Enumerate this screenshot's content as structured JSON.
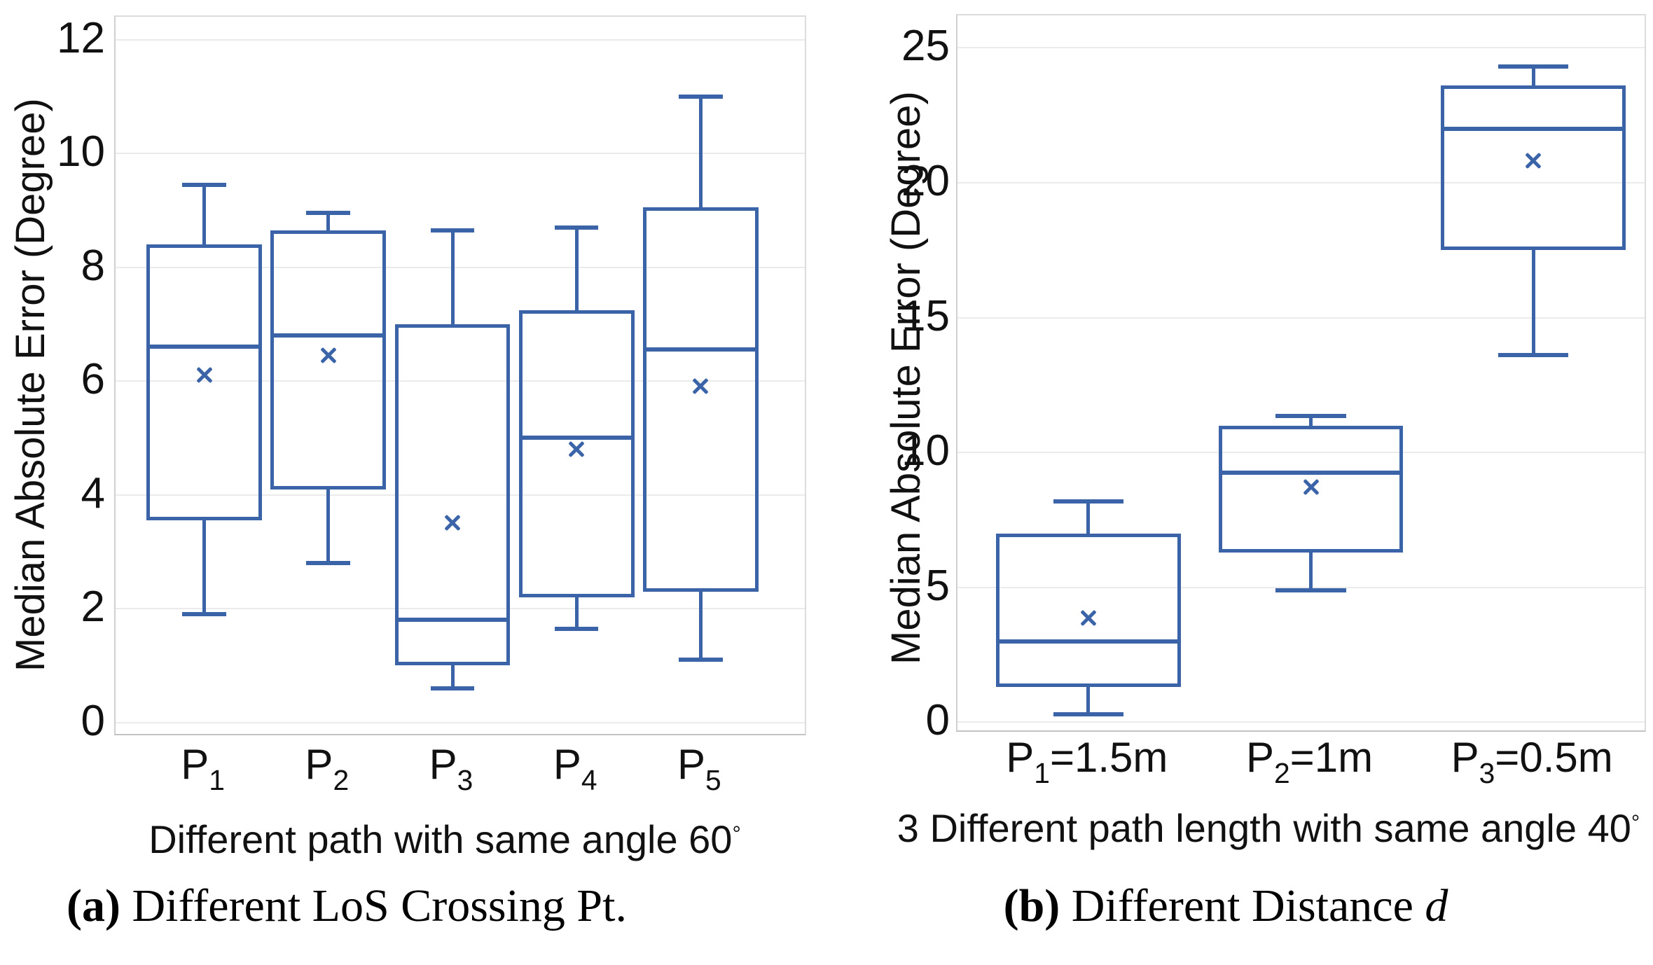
{
  "figure": {
    "captions": [
      {
        "bold": "(a)",
        "text": " Different LoS Crossing Pt.",
        "italic": ""
      },
      {
        "bold": "(b)",
        "text": " Different Distance ",
        "italic": "d"
      }
    ],
    "accent_color": "#3a63a8",
    "gridline_color": "#ebebeb"
  },
  "chart_data": [
    {
      "type": "box",
      "title": "",
      "ylabel": "Median Absolute Error (Degree)",
      "xlabel": "Different path with same angle 60",
      "xlabel_degree": "°",
      "ylim": [
        -0.2,
        12.4
      ],
      "yticks": [
        0,
        2,
        4,
        6,
        8,
        10,
        12
      ],
      "grid": true,
      "legend": "none",
      "categories": [
        {
          "base": "P",
          "sub": "1",
          "suffix": ""
        },
        {
          "base": "P",
          "sub": "2",
          "suffix": ""
        },
        {
          "base": "P",
          "sub": "3",
          "suffix": ""
        },
        {
          "base": "P",
          "sub": "4",
          "suffix": ""
        },
        {
          "base": "P",
          "sub": "5",
          "suffix": ""
        }
      ],
      "series": [
        {
          "category": "P1",
          "low": 1.9,
          "q1": 3.55,
          "median": 6.6,
          "mean": 6.1,
          "q3": 8.4,
          "high": 9.45
        },
        {
          "category": "P2",
          "low": 2.8,
          "q1": 4.1,
          "median": 6.8,
          "mean": 6.45,
          "q3": 8.65,
          "high": 8.95
        },
        {
          "category": "P3",
          "low": 0.6,
          "q1": 1.0,
          "median": 1.8,
          "mean": 3.5,
          "q3": 7.0,
          "high": 8.65
        },
        {
          "category": "P4",
          "low": 1.65,
          "q1": 2.2,
          "median": 5.0,
          "mean": 4.8,
          "q3": 7.25,
          "high": 8.7
        },
        {
          "category": "P5",
          "low": 1.1,
          "q1": 2.3,
          "median": 6.55,
          "mean": 5.9,
          "q3": 9.05,
          "high": 11.0
        }
      ]
    },
    {
      "type": "box",
      "title": "",
      "ylabel": "Median Absolute Error (Degree)",
      "xlabel": "3 Different path length with same angle 40",
      "xlabel_degree": "°",
      "ylim": [
        -0.3,
        26.2
      ],
      "yticks": [
        0,
        5,
        10,
        15,
        20,
        25
      ],
      "grid": true,
      "legend": "none",
      "categories": [
        {
          "base": "P",
          "sub": "1",
          "suffix": "=1.5m"
        },
        {
          "base": "P",
          "sub": "2",
          "suffix": "=1m"
        },
        {
          "base": "P",
          "sub": "3",
          "suffix": "=0.5m"
        }
      ],
      "series": [
        {
          "category": "P1=1.5m",
          "low": 0.3,
          "q1": 1.3,
          "median": 3.0,
          "mean": 3.85,
          "q3": 7.0,
          "high": 8.2
        },
        {
          "category": "P2=1m",
          "low": 4.9,
          "q1": 6.3,
          "median": 9.25,
          "mean": 8.7,
          "q3": 11.0,
          "high": 11.35
        },
        {
          "category": "P3=0.5m",
          "low": 13.6,
          "q1": 17.5,
          "median": 22.0,
          "mean": 20.8,
          "q3": 23.6,
          "high": 24.3
        }
      ]
    }
  ]
}
